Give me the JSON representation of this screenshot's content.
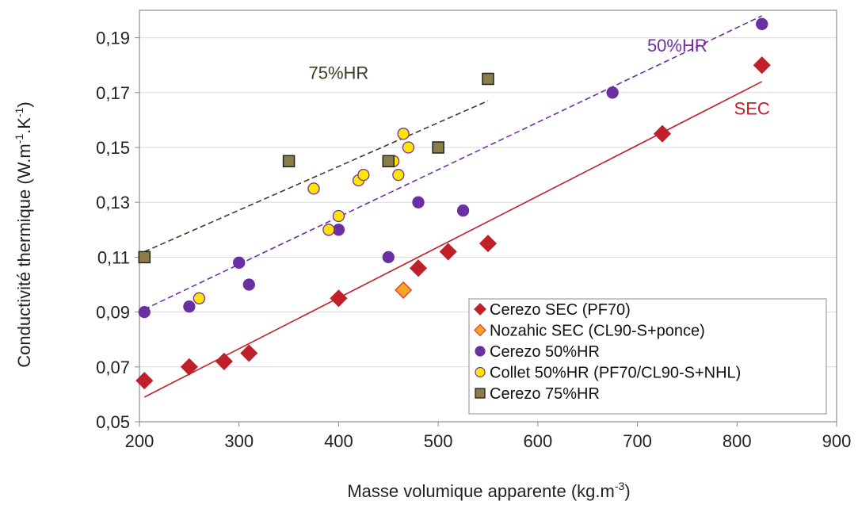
{
  "chart_data": {
    "type": "scatter",
    "xlabel": "Masse volumique apparente (kg.m",
    "xlabel_sup": "-3",
    "xlabel_end": ")",
    "ylabel": "Conductivité thermique (W.m",
    "ylabel_sup1": "-1",
    "ylabel_mid": ".K",
    "ylabel_sup2": "-1",
    "ylabel_end": ")",
    "xlim": [
      200,
      900
    ],
    "ylim": [
      0.05,
      0.2
    ],
    "xticks": [
      200,
      300,
      400,
      500,
      600,
      700,
      800,
      900
    ],
    "xtick_labels": [
      "200",
      "300",
      "400",
      "500",
      "600",
      "700",
      "800",
      "900"
    ],
    "yticks": [
      0.05,
      0.07,
      0.09,
      0.11,
      0.13,
      0.15,
      0.17,
      0.19
    ],
    "ytick_labels": [
      "0,05",
      "0,07",
      "0,09",
      "0,11",
      "0,13",
      "0,15",
      "0,17",
      "0,19"
    ],
    "grid": "horizontal",
    "legend_position": "bottom-right",
    "series": [
      {
        "name": "Cerezo SEC (PF70)",
        "marker": "diamond",
        "fill": "#c0202a",
        "stroke": "#c0202a",
        "points": [
          [
            205,
            0.065
          ],
          [
            250,
            0.07
          ],
          [
            285,
            0.072
          ],
          [
            310,
            0.075
          ],
          [
            400,
            0.095
          ],
          [
            480,
            0.106
          ],
          [
            510,
            0.112
          ],
          [
            550,
            0.115
          ],
          [
            725,
            0.155
          ],
          [
            825,
            0.18
          ]
        ]
      },
      {
        "name": "Nozahic SEC (CL90-S+ponce)",
        "marker": "diamond",
        "fill": "#f5a623",
        "stroke": "#e8453c",
        "points": [
          [
            465,
            0.098
          ]
        ]
      },
      {
        "name": "Cerezo 50%HR",
        "marker": "circle",
        "fill": "#6b2fa3",
        "stroke": "#6b2fa3",
        "points": [
          [
            205,
            0.09
          ],
          [
            250,
            0.092
          ],
          [
            300,
            0.108
          ],
          [
            310,
            0.1
          ],
          [
            400,
            0.12
          ],
          [
            450,
            0.11
          ],
          [
            480,
            0.13
          ],
          [
            525,
            0.127
          ],
          [
            675,
            0.17
          ],
          [
            825,
            0.195
          ]
        ]
      },
      {
        "name": "Collet 50%HR (PF70/CL90-S+NHL)",
        "marker": "circle",
        "fill": "#ffe600",
        "stroke": "#7030a0",
        "points": [
          [
            260,
            0.095
          ],
          [
            375,
            0.135
          ],
          [
            390,
            0.12
          ],
          [
            400,
            0.125
          ],
          [
            420,
            0.138
          ],
          [
            425,
            0.14
          ],
          [
            455,
            0.145
          ],
          [
            460,
            0.14
          ],
          [
            465,
            0.155
          ],
          [
            470,
            0.15
          ]
        ]
      },
      {
        "name": "Cerezo 75%HR",
        "marker": "square",
        "fill": "#8b7d4a",
        "stroke": "#222222",
        "points": [
          [
            205,
            0.11
          ],
          [
            350,
            0.145
          ],
          [
            450,
            0.145
          ],
          [
            500,
            0.15
          ],
          [
            550,
            0.175
          ]
        ]
      }
    ],
    "trendlines": [
      {
        "label": "SEC",
        "color": "#c0202a",
        "dash": "solid",
        "from": [
          205,
          0.059
        ],
        "to": [
          825,
          0.174
        ],
        "label_at": [
          815,
          0.162
        ]
      },
      {
        "label": "50%HR",
        "color": "#7030a0",
        "dash": "dashed",
        "from": [
          205,
          0.091
        ],
        "to": [
          825,
          0.198
        ],
        "label_at": [
          740,
          0.185
        ]
      },
      {
        "label": "75%HR",
        "color": "#3d3d25",
        "dash": "dashed",
        "from": [
          205,
          0.112
        ],
        "to": [
          550,
          0.167
        ],
        "label_at": [
          400,
          0.175
        ]
      }
    ]
  }
}
